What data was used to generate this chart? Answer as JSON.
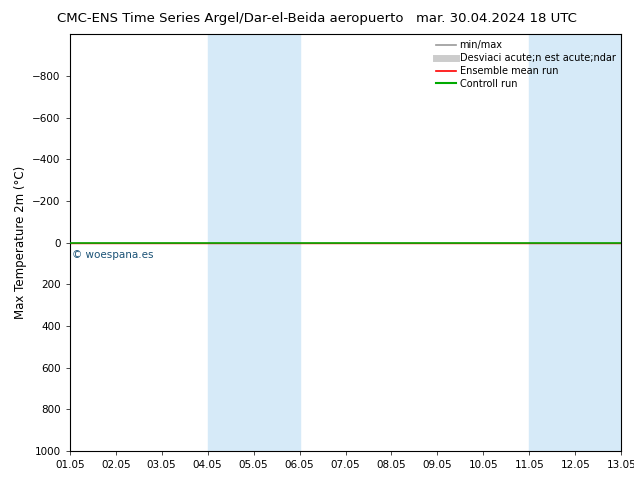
{
  "title_left": "CMC-ENS Time Series Argel/Dar-el-Beida aeropuerto",
  "title_right": "mar. 30.04.2024 18 UTC",
  "ylabel": "Max Temperature 2m (°C)",
  "xlabel_ticks": [
    "01.05",
    "02.05",
    "03.05",
    "04.05",
    "05.05",
    "06.05",
    "07.05",
    "08.05",
    "09.05",
    "10.05",
    "11.05",
    "12.05",
    "13.05"
  ],
  "xlim": [
    0,
    12
  ],
  "ylim": [
    1000,
    -1000
  ],
  "yticks": [
    -800,
    -600,
    -400,
    -200,
    0,
    200,
    400,
    600,
    800,
    1000
  ],
  "shaded_regions": [
    {
      "xmin": 3.0,
      "xmax": 5.0,
      "color": "#d6eaf8"
    },
    {
      "xmin": 10.0,
      "xmax": 12.0,
      "color": "#d6eaf8"
    }
  ],
  "green_line_y": 0,
  "red_line_y": 0,
  "watermark": "© woespana.es",
  "watermark_color": "#1a5276",
  "background_color": "#ffffff",
  "plot_bg_color": "#ffffff",
  "legend_items": [
    {
      "label": "min/max",
      "color": "#999999",
      "lw": 1.2
    },
    {
      "label": "Desviaci acute;n est acute;ndar",
      "color": "#cccccc",
      "lw": 5
    },
    {
      "label": "Ensemble mean run",
      "color": "#ff0000",
      "lw": 1.2
    },
    {
      "label": "Controll run",
      "color": "#00aa00",
      "lw": 1.5
    }
  ],
  "title_fontsize": 9.5,
  "tick_fontsize": 7.5,
  "ylabel_fontsize": 8.5
}
